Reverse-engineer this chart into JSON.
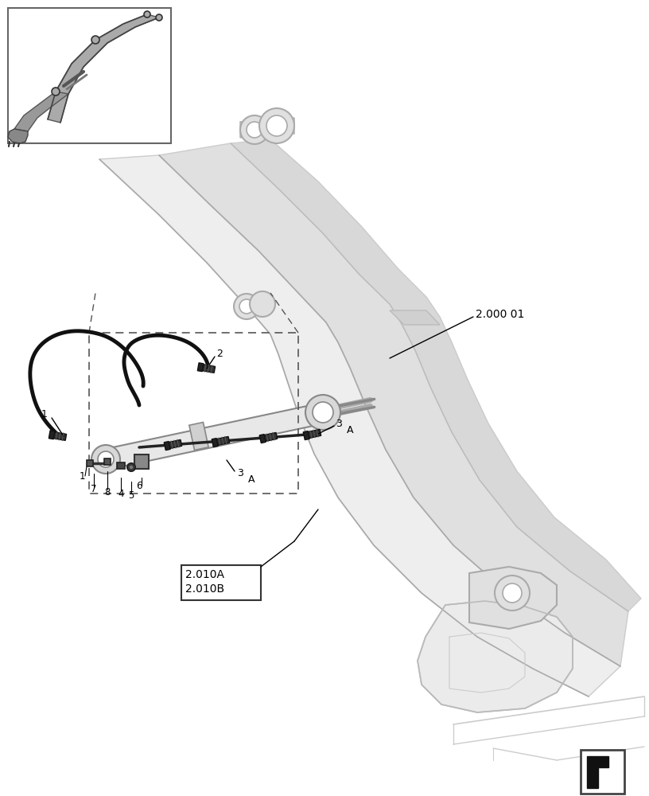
{
  "bg_color": "#ffffff",
  "lc": "#cccccc",
  "dc": "#888888",
  "bk": "#000000",
  "label_2000_01": "2.000 01",
  "label_2010A": "2.010A",
  "label_2010B": "2.010B"
}
